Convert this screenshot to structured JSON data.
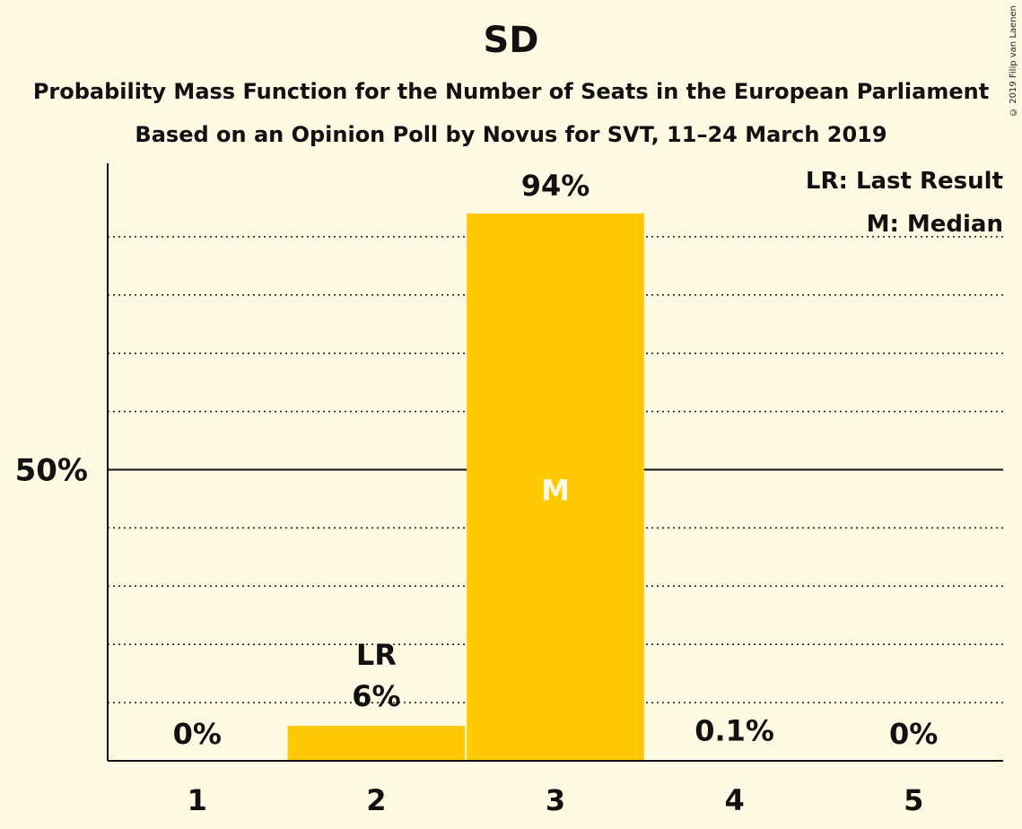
{
  "chart_data": {
    "type": "bar",
    "title": "SD",
    "subtitle_1": "Probability Mass Function for the Number of Seats in the European Parliament",
    "subtitle_2": "Based on an Opinion Poll by Novus for SVT, 11–24 March 2019",
    "categories": [
      "1",
      "2",
      "3",
      "4",
      "5"
    ],
    "values": [
      0,
      6,
      94,
      0.1,
      0
    ],
    "value_labels": [
      "0%",
      "6%",
      "94%",
      "0.1%",
      "0%"
    ],
    "ylim": [
      0,
      100
    ],
    "yticks": [
      50
    ],
    "ytick_labels": [
      "50%"
    ],
    "gridlines": [
      10,
      20,
      30,
      40,
      60,
      70,
      80,
      90
    ],
    "last_result": {
      "category": "2",
      "label": "LR"
    },
    "median": {
      "category": "3",
      "label": "M"
    },
    "legend": [
      "LR: Last Result",
      "M: Median"
    ],
    "legend_position": "top-right",
    "bar_color": "#FFC800"
  },
  "copyright": "© 2019 Filip van Laenen"
}
